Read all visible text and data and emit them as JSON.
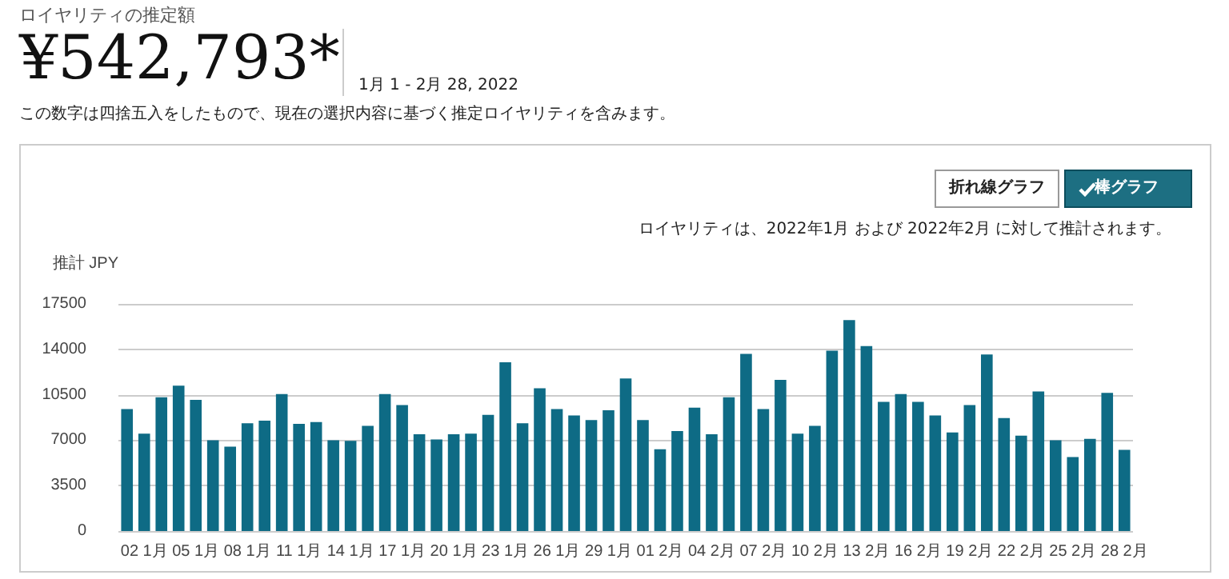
{
  "chart_data": {
    "type": "bar",
    "title": "ロイヤリティの推定額",
    "annotations": [
      "¥542,793*",
      "1月 1 - 2月 28, 2022",
      "この数字は四捨五入をしたもので、現在の選択内容に基づく推定ロイヤリティを含みます。",
      "折れ線グラフ",
      "棒グラフ",
      "ロイヤリティは、2022年1月 および 2022年2月 に対して推計されます。"
    ],
    "ylabel": "推計 JPY",
    "categories": [
      null,
      "02 1月",
      null,
      null,
      "05 1月",
      null,
      null,
      "08 1月",
      null,
      null,
      "11 1月",
      null,
      null,
      "14 1月",
      null,
      null,
      "17 1月",
      null,
      null,
      "20 1月",
      null,
      null,
      "23 1月",
      null,
      null,
      "26 1月",
      null,
      null,
      "29 1月",
      null,
      null,
      "01 2月",
      null,
      null,
      "04 2月",
      null,
      null,
      "07 2月",
      null,
      null,
      "10 2月",
      null,
      null,
      "13 2月",
      null,
      null,
      "16 2月",
      null,
      null,
      "19 2月",
      null,
      null,
      "22 2月",
      null,
      null,
      "25 2月",
      null,
      null,
      "28 2月"
    ],
    "values": [
      9400,
      7500,
      10300,
      11200,
      10100,
      7000,
      6500,
      8300,
      8500,
      10550,
      8250,
      8400,
      7000,
      6950,
      8100,
      10550,
      9700,
      7450,
      7050,
      7450,
      7500,
      8950,
      13000,
      8300,
      11000,
      9400,
      8900,
      8550,
      9300,
      11750,
      8550,
      6300,
      7700,
      9500,
      7450,
      10300,
      13650,
      9400,
      11650,
      7500,
      8100,
      13900,
      16250,
      14250,
      9950,
      10550,
      9950,
      8900,
      7600,
      9700,
      13600,
      8700,
      7350,
      10750,
      7000,
      5700,
      7100,
      10650,
      6250
    ],
    "color": "#0e6b85",
    "ylim": [
      0,
      17500
    ],
    "yticks": [
      0,
      3500,
      7000,
      10500,
      14000,
      17500
    ],
    "grid": "y"
  }
}
